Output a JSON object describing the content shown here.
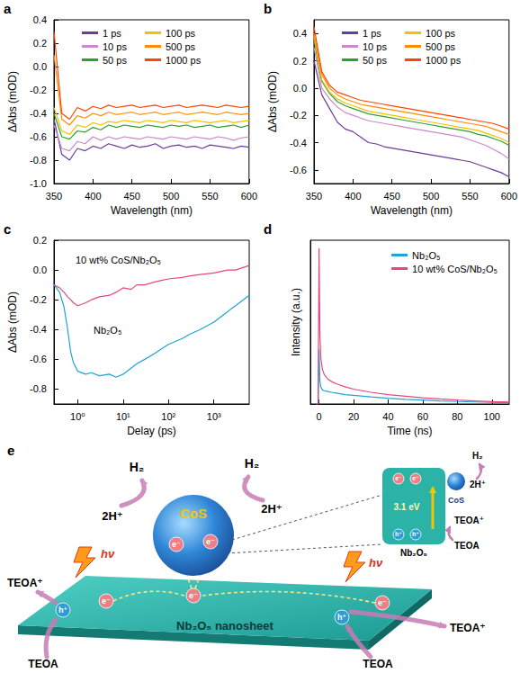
{
  "chart_data": [
    {
      "panel": "a",
      "type": "line",
      "x_label": "Wavelength (nm)",
      "y_label": "ΔAbs (mOD)",
      "x": [
        350,
        360,
        370,
        380,
        390,
        400,
        410,
        420,
        430,
        440,
        450,
        460,
        470,
        480,
        490,
        500,
        510,
        520,
        530,
        540,
        550,
        560,
        570,
        580,
        590,
        600
      ],
      "series": [
        {
          "name": "1 ps",
          "color": "#6a3d9a",
          "values": [
            -0.45,
            -0.75,
            -0.8,
            -0.7,
            -0.72,
            -0.68,
            -0.7,
            -0.66,
            -0.68,
            -0.7,
            -0.67,
            -0.69,
            -0.68,
            -0.66,
            -0.7,
            -0.68,
            -0.67,
            -0.69,
            -0.68,
            -0.7,
            -0.67,
            -0.68,
            -0.69,
            -0.7,
            -0.68,
            -0.69
          ]
        },
        {
          "name": "10 ps",
          "color": "#c98bc9",
          "values": [
            -0.5,
            -0.7,
            -0.72,
            -0.64,
            -0.66,
            -0.6,
            -0.63,
            -0.6,
            -0.62,
            -0.6,
            -0.61,
            -0.62,
            -0.6,
            -0.61,
            -0.62,
            -0.6,
            -0.61,
            -0.62,
            -0.6,
            -0.61,
            -0.62,
            -0.6,
            -0.61,
            -0.63,
            -0.61,
            -0.6
          ]
        },
        {
          "name": "50 ps",
          "color": "#2ca02c",
          "values": [
            -0.4,
            -0.6,
            -0.62,
            -0.55,
            -0.56,
            -0.52,
            -0.54,
            -0.5,
            -0.52,
            -0.5,
            -0.51,
            -0.52,
            -0.5,
            -0.51,
            -0.52,
            -0.5,
            -0.51,
            -0.5,
            -0.52,
            -0.51,
            -0.5,
            -0.52,
            -0.51,
            -0.5,
            -0.52,
            -0.5
          ]
        },
        {
          "name": "100 ps",
          "color": "#f2c200",
          "values": [
            -0.35,
            -0.55,
            -0.58,
            -0.5,
            -0.52,
            -0.48,
            -0.5,
            -0.47,
            -0.48,
            -0.46,
            -0.47,
            -0.48,
            -0.46,
            -0.47,
            -0.48,
            -0.46,
            -0.47,
            -0.48,
            -0.46,
            -0.47,
            -0.48,
            -0.47,
            -0.46,
            -0.48,
            -0.47,
            -0.46
          ]
        },
        {
          "name": "500 ps",
          "color": "#ff8c00",
          "values": [
            0.1,
            -0.45,
            -0.5,
            -0.42,
            -0.44,
            -0.4,
            -0.42,
            -0.39,
            -0.41,
            -0.4,
            -0.39,
            -0.41,
            -0.4,
            -0.39,
            -0.41,
            -0.4,
            -0.39,
            -0.41,
            -0.4,
            -0.39,
            -0.4,
            -0.41,
            -0.39,
            -0.4,
            -0.41,
            -0.4
          ]
        },
        {
          "name": "1000 ps",
          "color": "#ff4500",
          "values": [
            0.3,
            -0.4,
            -0.45,
            -0.35,
            -0.38,
            -0.34,
            -0.36,
            -0.33,
            -0.35,
            -0.34,
            -0.33,
            -0.35,
            -0.34,
            -0.33,
            -0.35,
            -0.34,
            -0.33,
            -0.35,
            -0.34,
            -0.33,
            -0.34,
            -0.35,
            -0.33,
            -0.34,
            -0.35,
            -0.34
          ]
        }
      ],
      "xlim": [
        350,
        600
      ],
      "xticks": [
        350,
        400,
        450,
        500,
        550,
        600
      ],
      "ylim": [
        -1.0,
        0.4
      ],
      "yticks": [
        {
          "value": -1.0,
          "label": "-1.0"
        },
        -0.8,
        -0.6,
        -0.4,
        -0.2,
        {
          "value": 0,
          "label": "0.0"
        },
        0.2,
        0.4
      ],
      "legend": "upper left",
      "grid": false
    },
    {
      "panel": "b",
      "type": "line",
      "x_label": "Wavelength (nm)",
      "y_label": "ΔAbs (mOD)",
      "x": [
        350,
        360,
        370,
        380,
        390,
        400,
        410,
        420,
        430,
        440,
        450,
        460,
        470,
        480,
        490,
        500,
        510,
        520,
        530,
        540,
        550,
        560,
        570,
        580,
        590,
        600
      ],
      "series": [
        {
          "name": "1 ps",
          "color": "#6a3d9a",
          "values": [
            0.2,
            -0.05,
            -0.15,
            -0.25,
            -0.3,
            -0.32,
            -0.36,
            -0.4,
            -0.41,
            -0.43,
            -0.44,
            -0.45,
            -0.46,
            -0.47,
            -0.48,
            -0.49,
            -0.5,
            -0.51,
            -0.52,
            -0.53,
            -0.54,
            -0.56,
            -0.58,
            -0.6,
            -0.62,
            -0.65
          ]
        },
        {
          "name": "10 ps",
          "color": "#c98bc9",
          "values": [
            0.3,
            0.0,
            -0.08,
            -0.14,
            -0.18,
            -0.2,
            -0.22,
            -0.24,
            -0.25,
            -0.26,
            -0.27,
            -0.28,
            -0.29,
            -0.3,
            -0.31,
            -0.32,
            -0.33,
            -0.34,
            -0.35,
            -0.36,
            -0.38,
            -0.4,
            -0.42,
            -0.45,
            -0.48,
            -0.52
          ]
        },
        {
          "name": "50 ps",
          "color": "#2ca02c",
          "values": [
            0.35,
            0.05,
            -0.04,
            -0.1,
            -0.13,
            -0.15,
            -0.17,
            -0.19,
            -0.2,
            -0.21,
            -0.22,
            -0.23,
            -0.24,
            -0.25,
            -0.26,
            -0.27,
            -0.28,
            -0.29,
            -0.3,
            -0.31,
            -0.32,
            -0.34,
            -0.35,
            -0.37,
            -0.39,
            -0.42
          ]
        },
        {
          "name": "100 ps",
          "color": "#f2c200",
          "values": [
            0.38,
            0.06,
            -0.03,
            -0.08,
            -0.11,
            -0.13,
            -0.15,
            -0.17,
            -0.18,
            -0.19,
            -0.2,
            -0.21,
            -0.22,
            -0.23,
            -0.24,
            -0.25,
            -0.26,
            -0.27,
            -0.28,
            -0.29,
            -0.3,
            -0.31,
            -0.33,
            -0.35,
            -0.37,
            -0.4
          ]
        },
        {
          "name": "500 ps",
          "color": "#ff8c00",
          "values": [
            0.4,
            0.1,
            0.0,
            -0.05,
            -0.08,
            -0.1,
            -0.12,
            -0.13,
            -0.14,
            -0.15,
            -0.16,
            -0.17,
            -0.18,
            -0.19,
            -0.2,
            -0.21,
            -0.22,
            -0.23,
            -0.24,
            -0.25,
            -0.26,
            -0.27,
            -0.28,
            -0.3,
            -0.32,
            -0.34
          ]
        },
        {
          "name": "1000 ps",
          "color": "#ff4500",
          "values": [
            0.45,
            0.12,
            0.02,
            -0.03,
            -0.05,
            -0.07,
            -0.09,
            -0.1,
            -0.11,
            -0.12,
            -0.13,
            -0.14,
            -0.15,
            -0.16,
            -0.17,
            -0.18,
            -0.19,
            -0.2,
            -0.21,
            -0.22,
            -0.23,
            -0.24,
            -0.25,
            -0.26,
            -0.28,
            -0.3
          ]
        }
      ],
      "xlim": [
        350,
        600
      ],
      "xticks": [
        350,
        400,
        450,
        500,
        550,
        600
      ],
      "ylim": [
        -0.7,
        0.5
      ],
      "yticks": [
        -0.6,
        -0.4,
        -0.2,
        {
          "value": 0,
          "label": "0.0"
        },
        0.2,
        0.4
      ],
      "legend": "upper left",
      "grid": false
    },
    {
      "panel": "c",
      "type": "line",
      "x_label": "Delay (ps)",
      "y_label": "ΔAbs (mOD)",
      "log": "x",
      "x": [
        0.3,
        0.4,
        0.5,
        0.6,
        0.7,
        0.8,
        1,
        1.5,
        2,
        3,
        5,
        7,
        10,
        15,
        20,
        30,
        50,
        70,
        100,
        200,
        300,
        500,
        1000,
        2000,
        3000,
        6000
      ],
      "series": [
        {
          "name": "10 wt% CoS/Nb₂O₅",
          "color": "#e8467c",
          "values": [
            -0.1,
            -0.12,
            -0.15,
            -0.18,
            -0.2,
            -0.22,
            -0.24,
            -0.22,
            -0.2,
            -0.18,
            -0.17,
            -0.15,
            -0.12,
            -0.13,
            -0.1,
            -0.1,
            -0.08,
            -0.07,
            -0.06,
            -0.05,
            -0.04,
            -0.03,
            -0.02,
            0.0,
            0.0,
            0.03
          ]
        },
        {
          "name": "Nb₂O₅",
          "color": "#1fa3d6",
          "values": [
            -0.1,
            -0.15,
            -0.25,
            -0.4,
            -0.55,
            -0.62,
            -0.68,
            -0.7,
            -0.69,
            -0.71,
            -0.7,
            -0.72,
            -0.7,
            -0.66,
            -0.63,
            -0.6,
            -0.56,
            -0.53,
            -0.5,
            -0.46,
            -0.43,
            -0.4,
            -0.35,
            -0.28,
            -0.24,
            -0.17
          ]
        }
      ],
      "xlim": [
        0.3,
        6000
      ],
      "xticks": [
        {
          "value": 1,
          "label": "10⁰"
        },
        {
          "value": 10,
          "label": "10¹"
        },
        {
          "value": 100,
          "label": "10²"
        },
        {
          "value": 1000,
          "label": "10³"
        }
      ],
      "ylim": [
        -0.9,
        0.2
      ],
      "yticks": [
        -0.8,
        -0.6,
        -0.4,
        -0.2,
        {
          "value": 0,
          "label": "0.0"
        },
        0.2
      ],
      "grid": false
    },
    {
      "panel": "d",
      "type": "line",
      "x_label": "Time (ns)",
      "y_label": "Intensity (a.u.)",
      "x": [
        -2,
        -0.5,
        0,
        0.5,
        1,
        2,
        3,
        5,
        7,
        10,
        15,
        20,
        30,
        40,
        50,
        60,
        70,
        80,
        90,
        100,
        110
      ],
      "series": [
        {
          "name": "Nb₂O₅",
          "color": "#1fa3d6",
          "values": [
            0,
            0,
            0.35,
            0.15,
            0.11,
            0.09,
            0.085,
            0.08,
            0.075,
            0.07,
            0.06,
            0.055,
            0.045,
            0.037,
            0.03,
            0.025,
            0.02,
            0.016,
            0.013,
            0.01,
            0.008
          ]
        },
        {
          "name": "10 wt% CoS/Nb₂O₅",
          "color": "#e8467c",
          "values": [
            0,
            0,
            1.0,
            0.45,
            0.3,
            0.22,
            0.19,
            0.16,
            0.145,
            0.13,
            0.11,
            0.095,
            0.075,
            0.06,
            0.05,
            0.04,
            0.032,
            0.025,
            0.02,
            0.015,
            0.012
          ]
        }
      ],
      "xlim": [
        -5,
        110
      ],
      "xticks": [
        0,
        20,
        40,
        60,
        80,
        100
      ],
      "ylim": [
        0,
        1.05
      ],
      "tick_labels": "x",
      "legend": "upper right",
      "grid": false
    }
  ],
  "diagram": {
    "panel": "e",
    "support": "Nb₂O₅ nanosheet",
    "cocatalyst": "CoS",
    "electron": "e⁻",
    "hole": "h⁺",
    "light": "hν",
    "product": "H₂",
    "proton": "2H⁺",
    "donor_oxidized": "TEOA⁺",
    "donor": "TEOA",
    "inset": {
      "band_gap": "3.1 eV",
      "semiconductor": "Nb₂O₅",
      "cocatalyst": "CoS"
    }
  }
}
